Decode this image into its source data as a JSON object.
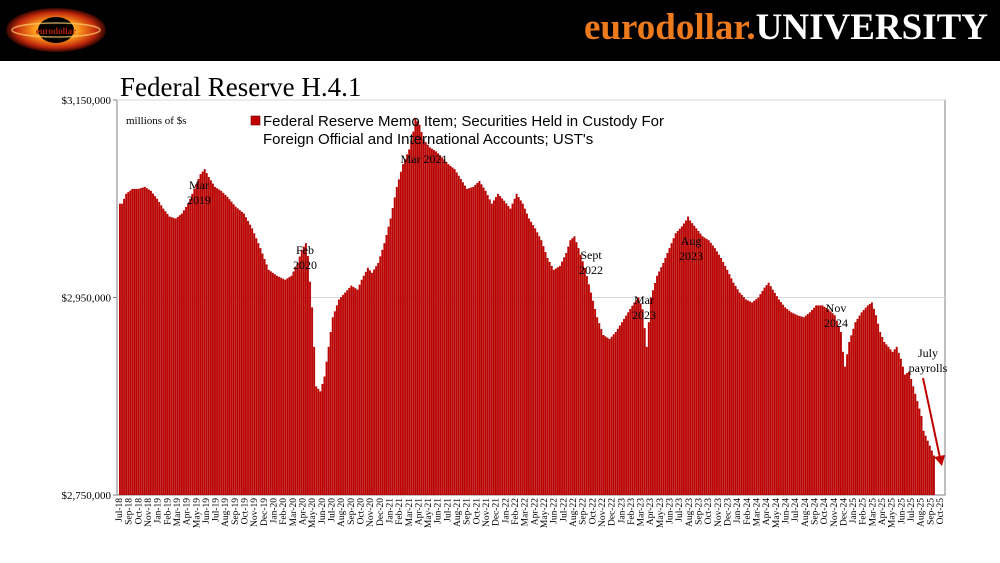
{
  "header": {
    "brand_part1": "eurodollar.",
    "brand_part2": "UNIVERSITY",
    "logo_icon": "eurodollar-logo-icon",
    "logo_text": "eurodollar"
  },
  "slide_title": "Federal Reserve H.4.1",
  "colors": {
    "bar": "#c00000",
    "bar_edge": "#7a0000",
    "arrow": "#c00000",
    "brand_orange": "#ee7a1e"
  },
  "chart_data": {
    "type": "bar",
    "title": "Federal Reserve Memo Item; Securities Held in Custody For Foreign Official and International Accounts; UST's",
    "legend": [
      "Federal Reserve Memo Item; Securities Held in Custody For",
      "Foreign Official and International Accounts; UST's"
    ],
    "ylabel": "millions of $s",
    "ylim": [
      2750000,
      3150000
    ],
    "yticks": [
      2750000,
      2950000,
      3150000
    ],
    "ytick_labels": [
      "$2,750,000",
      "$2,950,000",
      "$3,150,000"
    ],
    "grid": "horizontal",
    "frequency": "weekly",
    "x_start": "Jul-18",
    "x_end": "Oct-25",
    "xtick_labels": [
      "Jul-18",
      "Sep-18",
      "Oct-18",
      "Nov-18",
      "Jan-19",
      "Feb-19",
      "Mar-19",
      "Apr-19",
      "May-19",
      "Jun-19",
      "Jul-19",
      "Aug-19",
      "Sep-19",
      "Oct-19",
      "Nov-19",
      "Dec-19",
      "Jan-20",
      "Feb-20",
      "Mar-20",
      "Apr-20",
      "May-20",
      "Jun-20",
      "Jul-20",
      "Aug-20",
      "Sep-20",
      "Oct-20",
      "Nov-20",
      "Dec-20",
      "Jan-21",
      "Feb-21",
      "Mar-21",
      "Apr-21",
      "May-21",
      "Jun-21",
      "Jul-21",
      "Aug-21",
      "Sep-21",
      "Oct-21",
      "Nov-21",
      "Dec-21",
      "Jan-22",
      "Feb-22",
      "Mar-22",
      "Apr-22",
      "May-22",
      "Jun-22",
      "Jul-22",
      "Aug-22",
      "Sep-22",
      "Oct-22",
      "Nov-22",
      "Dec-22",
      "Jan-23",
      "Feb-23",
      "Mar-23",
      "Apr-23",
      "May-23",
      "Jun-23",
      "Jul-23",
      "Aug-23",
      "Sep-23",
      "Oct-23",
      "Nov-23",
      "Dec-23",
      "Jan-24",
      "Feb-24",
      "Mar-24",
      "Apr-24",
      "May-24",
      "Jun-24",
      "Jul-24",
      "Aug-24",
      "Sep-24",
      "Oct-24",
      "Nov-24",
      "Dec-24",
      "Jan-25",
      "Feb-25",
      "Mar-25",
      "Apr-25",
      "May-25",
      "Jun-25",
      "Jul-25",
      "Aug-25",
      "Sep-25",
      "Oct-25"
    ],
    "anchors": [
      [
        0,
        3045000
      ],
      [
        1,
        3045000
      ],
      [
        3,
        3055000
      ],
      [
        6,
        3060000
      ],
      [
        9,
        3060000
      ],
      [
        12,
        3062000
      ],
      [
        15,
        3058000
      ],
      [
        18,
        3050000
      ],
      [
        21,
        3040000
      ],
      [
        24,
        3032000
      ],
      [
        27,
        3030000
      ],
      [
        30,
        3035000
      ],
      [
        33,
        3045000
      ],
      [
        36,
        3060000
      ],
      [
        39,
        3075000
      ],
      [
        41,
        3080000
      ],
      [
        43,
        3072000
      ],
      [
        46,
        3062000
      ],
      [
        49,
        3058000
      ],
      [
        52,
        3052000
      ],
      [
        56,
        3042000
      ],
      [
        60,
        3035000
      ],
      [
        64,
        3020000
      ],
      [
        68,
        3000000
      ],
      [
        72,
        2978000
      ],
      [
        76,
        2972000
      ],
      [
        80,
        2968000
      ],
      [
        83,
        2972000
      ],
      [
        86,
        2985000
      ],
      [
        88,
        2998000
      ],
      [
        90,
        3005000
      ],
      [
        91,
        2992000
      ],
      [
        93,
        2940000
      ],
      [
        95,
        2860000
      ],
      [
        97,
        2855000
      ],
      [
        99,
        2870000
      ],
      [
        101,
        2900000
      ],
      [
        103,
        2930000
      ],
      [
        106,
        2948000
      ],
      [
        109,
        2955000
      ],
      [
        112,
        2962000
      ],
      [
        115,
        2958000
      ],
      [
        117,
        2968000
      ],
      [
        120,
        2980000
      ],
      [
        122,
        2975000
      ],
      [
        125,
        2985000
      ],
      [
        128,
        3005000
      ],
      [
        131,
        3030000
      ],
      [
        134,
        3062000
      ],
      [
        137,
        3085000
      ],
      [
        140,
        3100000
      ],
      [
        142,
        3118000
      ],
      [
        143,
        3132000
      ],
      [
        145,
        3125000
      ],
      [
        147,
        3110000
      ],
      [
        150,
        3102000
      ],
      [
        153,
        3098000
      ],
      [
        156,
        3092000
      ],
      [
        159,
        3085000
      ],
      [
        162,
        3080000
      ],
      [
        165,
        3070000
      ],
      [
        168,
        3060000
      ],
      [
        171,
        3062000
      ],
      [
        174,
        3068000
      ],
      [
        177,
        3058000
      ],
      [
        180,
        3045000
      ],
      [
        183,
        3055000
      ],
      [
        186,
        3048000
      ],
      [
        189,
        3040000
      ],
      [
        192,
        3055000
      ],
      [
        195,
        3045000
      ],
      [
        198,
        3030000
      ],
      [
        201,
        3020000
      ],
      [
        204,
        3008000
      ],
      [
        207,
        2990000
      ],
      [
        210,
        2978000
      ],
      [
        213,
        2982000
      ],
      [
        216,
        2995000
      ],
      [
        218,
        3008000
      ],
      [
        220,
        3012000
      ],
      [
        222,
        3000000
      ],
      [
        225,
        2980000
      ],
      [
        228,
        2955000
      ],
      [
        231,
        2930000
      ],
      [
        234,
        2912000
      ],
      [
        237,
        2908000
      ],
      [
        240,
        2915000
      ],
      [
        243,
        2925000
      ],
      [
        246,
        2935000
      ],
      [
        249,
        2945000
      ],
      [
        251,
        2950000
      ],
      [
        253,
        2938000
      ],
      [
        255,
        2900000
      ],
      [
        257,
        2950000
      ],
      [
        260,
        2972000
      ],
      [
        263,
        2985000
      ],
      [
        266,
        3000000
      ],
      [
        269,
        3015000
      ],
      [
        272,
        3022000
      ],
      [
        274,
        3028000
      ],
      [
        275,
        3032000
      ],
      [
        276,
        3028000
      ],
      [
        279,
        3020000
      ],
      [
        282,
        3012000
      ],
      [
        285,
        3008000
      ],
      [
        288,
        3000000
      ],
      [
        291,
        2990000
      ],
      [
        294,
        2978000
      ],
      [
        297,
        2965000
      ],
      [
        300,
        2955000
      ],
      [
        303,
        2948000
      ],
      [
        306,
        2945000
      ],
      [
        309,
        2950000
      ],
      [
        312,
        2960000
      ],
      [
        314,
        2965000
      ],
      [
        316,
        2958000
      ],
      [
        319,
        2948000
      ],
      [
        322,
        2940000
      ],
      [
        325,
        2935000
      ],
      [
        328,
        2932000
      ],
      [
        331,
        2930000
      ],
      [
        334,
        2935000
      ],
      [
        337,
        2942000
      ],
      [
        340,
        2942000
      ],
      [
        343,
        2938000
      ],
      [
        346,
        2932000
      ],
      [
        349,
        2915000
      ],
      [
        350,
        2895000
      ],
      [
        351,
        2880000
      ],
      [
        353,
        2905000
      ],
      [
        356,
        2925000
      ],
      [
        359,
        2935000
      ],
      [
        362,
        2942000
      ],
      [
        364,
        2945000
      ],
      [
        366,
        2932000
      ],
      [
        368,
        2915000
      ],
      [
        370,
        2905000
      ],
      [
        372,
        2900000
      ],
      [
        374,
        2895000
      ],
      [
        376,
        2900000
      ],
      [
        378,
        2888000
      ],
      [
        380,
        2872000
      ],
      [
        382,
        2875000
      ],
      [
        384,
        2860000
      ],
      [
        386,
        2845000
      ],
      [
        388,
        2830000
      ],
      [
        389,
        2815000
      ],
      [
        390,
        2810000
      ],
      [
        391,
        2805000
      ],
      [
        392,
        2800000
      ],
      [
        393,
        2795000
      ],
      [
        394,
        2790000
      ]
    ],
    "notes": [
      {
        "line1": "Mar",
        "line2": "2019"
      },
      {
        "line1": "Feb",
        "line2": "2020"
      },
      {
        "line1": "Mar 2021",
        "line2": ""
      },
      {
        "line1": "Sept",
        "line2": "2022"
      },
      {
        "line1": "Mar",
        "line2": "2023"
      },
      {
        "line1": "Aug",
        "line2": "2023"
      },
      {
        "line1": "Nov",
        "line2": "2024"
      },
      {
        "line1": "July",
        "line2": "payrolls"
      }
    ]
  }
}
